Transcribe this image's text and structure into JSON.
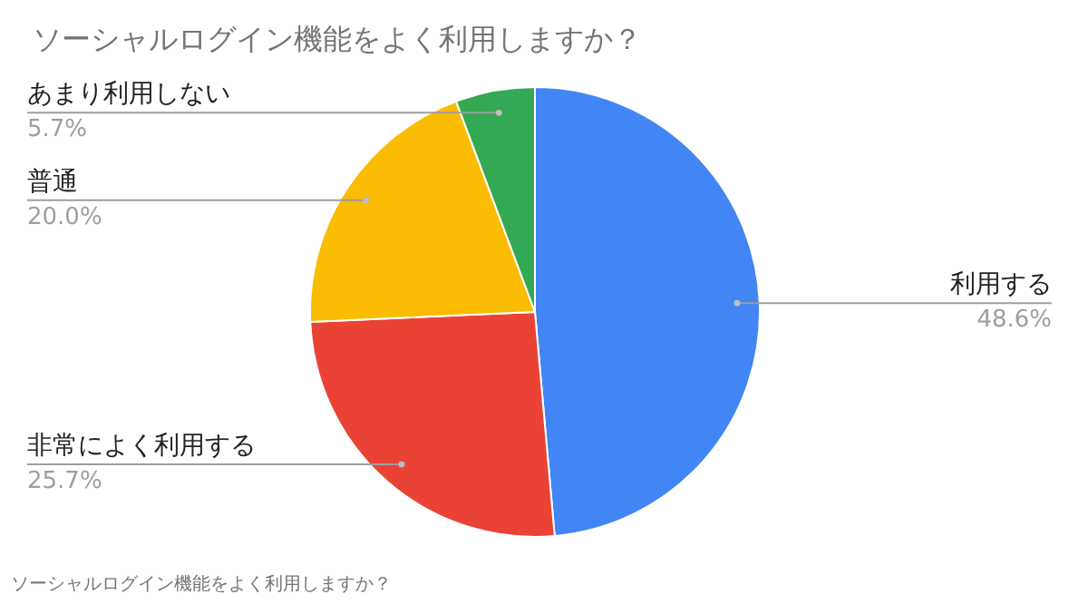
{
  "chart_data": {
    "type": "pie",
    "title": "ソーシャルログイン機能をよく利用しますか？",
    "categories": [
      "利用する",
      "非常によく利用する",
      "普通",
      "あまり利用しない"
    ],
    "values": [
      48.6,
      25.7,
      20.0,
      5.7
    ],
    "colors": [
      "#4285f4",
      "#ea4335",
      "#fbbc04",
      "#34a853"
    ],
    "value_labels": [
      "48.6%",
      "25.7%",
      "20.0%",
      "5.7%"
    ],
    "annotations": [
      "ソーシャルログイン機能をよく利用しますか？"
    ]
  }
}
